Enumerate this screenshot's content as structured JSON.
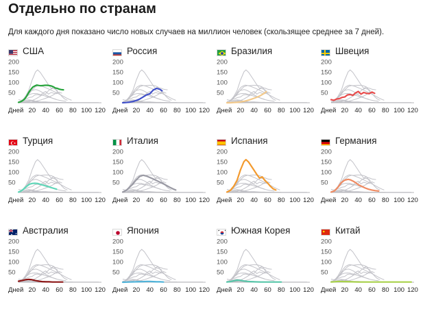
{
  "page": {
    "title": "Отдельно по странам",
    "subtitle": "Для каждого дня показано число новых случаев на миллион человек (скользящее среднее за 7 дней)."
  },
  "colors": {
    "axis": "#b4b4b8",
    "background_curves": "#c2c2c8",
    "tick_text": "#555555",
    "label_text": "#222222"
  },
  "chart_data": [
    {
      "type": "line",
      "country": "США",
      "flag": "us",
      "color": "#26a33b",
      "ylim": [
        0,
        200
      ],
      "xlim": [
        0,
        120
      ],
      "y_ticks": [
        "50",
        "100",
        "150",
        "200"
      ],
      "x_tick_labels": [
        "Дней",
        "20",
        "40",
        "60",
        "80",
        "100",
        "120"
      ],
      "series": [
        {
          "name": "США",
          "x": [
            0,
            3,
            6,
            9,
            12,
            15,
            18,
            21,
            24,
            27,
            30,
            33,
            36,
            39,
            42,
            45,
            48,
            51,
            54,
            57,
            60,
            63,
            66
          ],
          "y": [
            2,
            5,
            10,
            18,
            32,
            50,
            64,
            76,
            82,
            86,
            84,
            83,
            84,
            85,
            85,
            84,
            82,
            78,
            72,
            70,
            66,
            64,
            63
          ]
        }
      ]
    },
    {
      "type": "line",
      "country": "Россия",
      "flag": "ru",
      "color": "#3f4fc9",
      "ylim": [
        0,
        200
      ],
      "xlim": [
        0,
        120
      ],
      "y_ticks": [
        "50",
        "100",
        "150",
        "200"
      ],
      "x_tick_labels": [
        "Дней",
        "20",
        "40",
        "60",
        "80",
        "100",
        "120"
      ],
      "series": [
        {
          "name": "Россия",
          "x": [
            0,
            5,
            10,
            15,
            20,
            25,
            30,
            35,
            40,
            45,
            50,
            55,
            58
          ],
          "y": [
            0,
            1,
            3,
            6,
            11,
            18,
            28,
            38,
            44,
            62,
            70,
            65,
            58
          ]
        }
      ]
    },
    {
      "type": "line",
      "country": "Бразилия",
      "flag": "br",
      "color": "#f3c98a",
      "ylim": [
        0,
        200
      ],
      "xlim": [
        0,
        120
      ],
      "y_ticks": [
        "50",
        "100",
        "150",
        "200"
      ],
      "x_tick_labels": [
        "Дней",
        "20",
        "40",
        "60",
        "80",
        "100",
        "120"
      ],
      "series": [
        {
          "name": "Бразилия",
          "x": [
            0,
            5,
            10,
            15,
            20,
            25,
            30,
            35,
            40,
            45,
            50,
            55,
            58
          ],
          "y": [
            0,
            0,
            1,
            2,
            4,
            7,
            11,
            16,
            22,
            28,
            36,
            46,
            54
          ]
        }
      ]
    },
    {
      "type": "line",
      "country": "Швеция",
      "flag": "se",
      "color": "#e84a4a",
      "ylim": [
        0,
        200
      ],
      "xlim": [
        0,
        120
      ],
      "y_ticks": [
        "50",
        "100",
        "150",
        "200"
      ],
      "x_tick_labels": [
        "Дней",
        "20",
        "40",
        "60",
        "80",
        "100",
        "120"
      ],
      "series": [
        {
          "name": "Швеция",
          "x": [
            0,
            4,
            8,
            12,
            16,
            20,
            24,
            28,
            32,
            36,
            40,
            44,
            48,
            52,
            56,
            60,
            64
          ],
          "y": [
            15,
            12,
            18,
            20,
            26,
            28,
            38,
            40,
            36,
            48,
            55,
            42,
            50,
            46,
            44,
            52,
            46
          ]
        }
      ]
    },
    {
      "type": "line",
      "country": "Турция",
      "flag": "tr",
      "color": "#5fd6b8",
      "ylim": [
        0,
        200
      ],
      "xlim": [
        0,
        120
      ],
      "y_ticks": [
        "50",
        "100",
        "150",
        "200"
      ],
      "x_tick_labels": [
        "Дней",
        "20",
        "40",
        "60",
        "80",
        "100",
        "120"
      ],
      "series": [
        {
          "name": "Турция",
          "x": [
            0,
            4,
            8,
            12,
            16,
            20,
            24,
            28,
            32,
            36,
            40,
            44,
            48,
            52,
            56
          ],
          "y": [
            2,
            8,
            18,
            30,
            40,
            44,
            45,
            44,
            40,
            36,
            32,
            28,
            24,
            20,
            16
          ]
        }
      ]
    },
    {
      "type": "line",
      "country": "Италия",
      "flag": "it",
      "color": "#9a9aa4",
      "ylim": [
        0,
        200
      ],
      "xlim": [
        0,
        120
      ],
      "y_ticks": [
        "50",
        "100",
        "150",
        "200"
      ],
      "x_tick_labels": [
        "Дней",
        "20",
        "40",
        "60",
        "80",
        "100",
        "120"
      ],
      "series": [
        {
          "name": "Италия",
          "x": [
            0,
            5,
            10,
            15,
            20,
            25,
            30,
            35,
            40,
            45,
            50,
            55,
            60,
            65,
            70,
            75,
            78
          ],
          "y": [
            2,
            10,
            25,
            42,
            62,
            78,
            84,
            80,
            73,
            66,
            58,
            50,
            42,
            33,
            24,
            16,
            12
          ]
        }
      ]
    },
    {
      "type": "line",
      "country": "Испания",
      "flag": "es",
      "color": "#f39a2e",
      "ylim": [
        0,
        200
      ],
      "xlim": [
        0,
        120
      ],
      "y_ticks": [
        "50",
        "100",
        "150",
        "200"
      ],
      "x_tick_labels": [
        "Дней",
        "20",
        "40",
        "60",
        "80",
        "100",
        "120"
      ],
      "series": [
        {
          "name": "Испания",
          "x": [
            0,
            5,
            10,
            15,
            20,
            25,
            28,
            32,
            36,
            40,
            44,
            48,
            52,
            56,
            60,
            64,
            68,
            72
          ],
          "y": [
            2,
            10,
            30,
            60,
            110,
            150,
            160,
            148,
            128,
            108,
            88,
            70,
            76,
            58,
            46,
            30,
            18,
            12
          ]
        }
      ]
    },
    {
      "type": "line",
      "country": "Германия",
      "flag": "de",
      "color": "#ef8b62",
      "ylim": [
        0,
        200
      ],
      "xlim": [
        0,
        120
      ],
      "y_ticks": [
        "50",
        "100",
        "150",
        "200"
      ],
      "x_tick_labels": [
        "Дней",
        "20",
        "40",
        "60",
        "80",
        "100",
        "120"
      ],
      "series": [
        {
          "name": "Германия",
          "x": [
            0,
            5,
            10,
            15,
            20,
            25,
            28,
            32,
            36,
            40,
            45,
            50,
            55,
            60,
            65,
            70
          ],
          "y": [
            2,
            8,
            25,
            48,
            60,
            64,
            62,
            56,
            48,
            38,
            30,
            22,
            16,
            12,
            9,
            7
          ]
        }
      ]
    },
    {
      "type": "line",
      "country": "Австралия",
      "flag": "au",
      "color": "#8c1616",
      "ylim": [
        0,
        200
      ],
      "xlim": [
        0,
        120
      ],
      "y_ticks": [
        "50",
        "100",
        "150",
        "200"
      ],
      "x_tick_labels": [
        "Дней",
        "20",
        "40",
        "60",
        "80",
        "100",
        "120"
      ],
      "series": [
        {
          "name": "Австралия",
          "x": [
            0,
            5,
            10,
            15,
            20,
            25,
            30,
            35,
            40,
            45,
            50,
            55,
            60,
            65
          ],
          "y": [
            5,
            8,
            12,
            14,
            12,
            8,
            5,
            3,
            2,
            2,
            1,
            1,
            1,
            1
          ]
        }
      ]
    },
    {
      "type": "line",
      "country": "Япония",
      "flag": "jp",
      "color": "#4fb3d9",
      "ylim": [
        0,
        200
      ],
      "xlim": [
        0,
        120
      ],
      "y_ticks": [
        "50",
        "100",
        "150",
        "200"
      ],
      "x_tick_labels": [
        "Дней",
        "20",
        "40",
        "60",
        "80",
        "100",
        "120"
      ],
      "series": [
        {
          "name": "Япония",
          "x": [
            0,
            10,
            20,
            30,
            35,
            40,
            45,
            50,
            55,
            60
          ],
          "y": [
            0,
            1,
            2,
            3,
            4,
            4,
            3,
            2,
            2,
            1
          ]
        }
      ]
    },
    {
      "type": "line",
      "country": "Южная Корея",
      "flag": "kr",
      "color": "#57c6a9",
      "ylim": [
        0,
        200
      ],
      "xlim": [
        0,
        120
      ],
      "y_ticks": [
        "50",
        "100",
        "150",
        "200"
      ],
      "x_tick_labels": [
        "Дней",
        "20",
        "40",
        "60",
        "80",
        "100",
        "120"
      ],
      "series": [
        {
          "name": "Южная Корея",
          "x": [
            0,
            5,
            10,
            15,
            20,
            25,
            30,
            40,
            50,
            60,
            70,
            80
          ],
          "y": [
            1,
            3,
            7,
            10,
            9,
            6,
            4,
            2,
            1,
            1,
            1,
            1
          ]
        }
      ]
    },
    {
      "type": "line",
      "country": "Китай",
      "flag": "cn",
      "color": "#a8d14a",
      "ylim": [
        0,
        200
      ],
      "xlim": [
        0,
        120
      ],
      "y_ticks": [
        "50",
        "100",
        "150",
        "200"
      ],
      "x_tick_labels": [
        "Дней",
        "20",
        "40",
        "60",
        "80",
        "100",
        "120"
      ],
      "series": [
        {
          "name": "Китай",
          "x": [
            0,
            5,
            10,
            20,
            30,
            40,
            60,
            80,
            100,
            118
          ],
          "y": [
            1,
            2,
            4,
            3,
            2,
            1,
            1,
            1,
            1,
            1
          ]
        }
      ]
    }
  ]
}
